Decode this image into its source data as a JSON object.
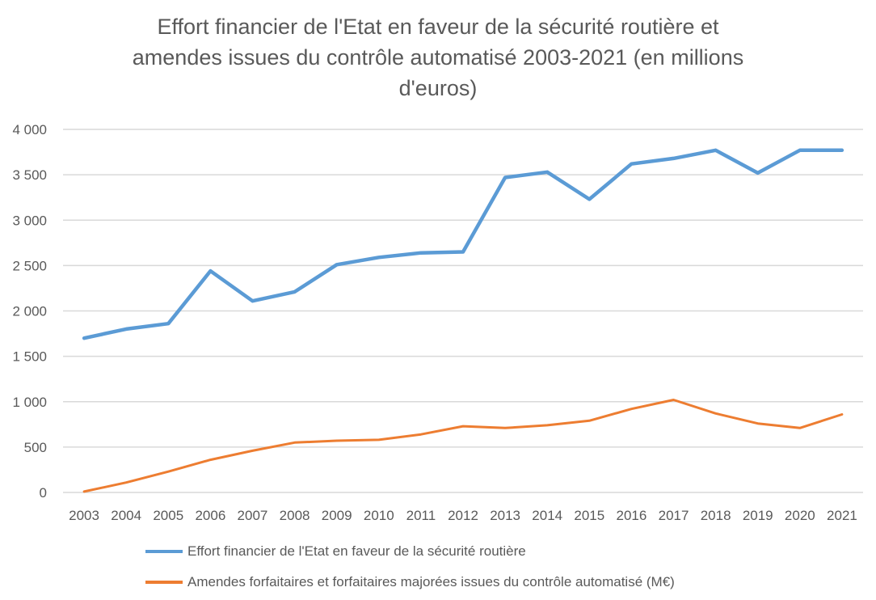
{
  "chart_data": {
    "type": "line",
    "title_lines": [
      "Effort financier de l'Etat en faveur de la sécurité routière et",
      "amendes issues du contrôle automatisé 2003-2021 (en millions",
      "d'euros)"
    ],
    "xlabel": "",
    "ylabel": "",
    "ylim": [
      0,
      4000
    ],
    "yticks": [
      0,
      500,
      1000,
      1500,
      2000,
      2500,
      3000,
      3500,
      4000
    ],
    "ytick_labels": [
      "0",
      "500",
      "1 000",
      "1 500",
      "2 000",
      "2 500",
      "3 000",
      "3 500",
      "4 000"
    ],
    "grid": "horizontal",
    "legend_position": "bottom",
    "categories": [
      "2003",
      "2004",
      "2005",
      "2006",
      "2007",
      "2008",
      "2009",
      "2010",
      "2011",
      "2012",
      "2013",
      "2014",
      "2015",
      "2016",
      "2017",
      "2018",
      "2019",
      "2020",
      "2021"
    ],
    "series": [
      {
        "name": "Effort financier de l'Etat en faveur de la sécurité routière",
        "color": "#5b9bd5",
        "values": [
          1700,
          1800,
          1860,
          2440,
          2110,
          2210,
          2510,
          2590,
          2640,
          2650,
          3470,
          3530,
          3230,
          3620,
          3680,
          3770,
          3520,
          3770,
          3770
        ]
      },
      {
        "name": "Amendes forfaitaires et forfaitaires majorées issues du contrôle automatisé (M€)",
        "color": "#ed7d31",
        "values": [
          10,
          110,
          230,
          360,
          460,
          550,
          570,
          580,
          640,
          730,
          710,
          740,
          790,
          920,
          1020,
          870,
          760,
          710,
          860
        ]
      }
    ]
  }
}
